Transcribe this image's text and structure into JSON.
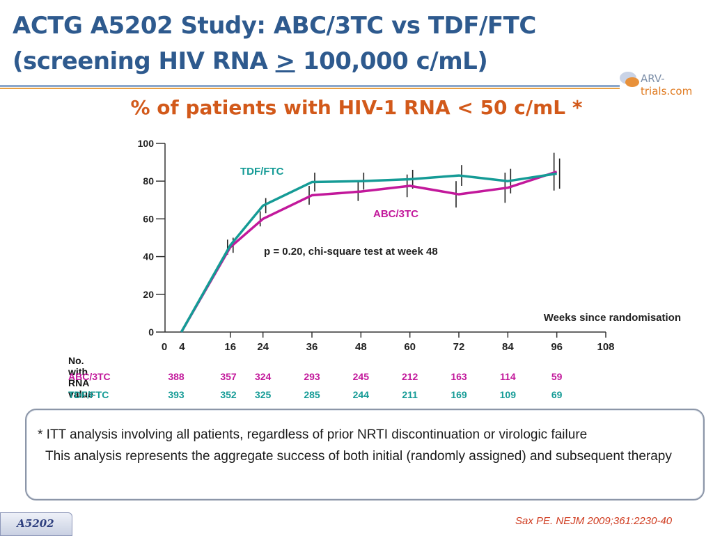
{
  "slide": {
    "title_line1": "ACTG A5202 Study: ABC/3TC vs TDF/FTC",
    "title_line2_pre": "(screening HIV RNA ",
    "title_line2_symbol": ">",
    "title_line2_post": " 100,000 c/mL)",
    "logo_text_a": "ARV-",
    "logo_text_b": "trials",
    "logo_text_c": ".com",
    "subtitle": "% of patients with HIV-1 RNA < 50 c/mL *",
    "footnote_line1": "* ITT analysis involving all patients, regardless of prior NRTI discontinuation or virologic failure",
    "footnote_line2": "This analysis represents the aggregate success of both initial (randomly assigned) and subsequent therapy",
    "study_tab": "A5202",
    "citation": "Sax PE. NEJM 2009;361:2230-40",
    "colors": {
      "title": "#2e5a8e",
      "subtitle": "#d2591a",
      "abc": "#c2189b",
      "tdf": "#159b96",
      "citation": "#cf3a1e"
    }
  },
  "chart_data": {
    "type": "line",
    "xlabel": "Weeks since randomisation",
    "ylabel": "",
    "xlim": [
      0,
      108
    ],
    "ylim": [
      0,
      100
    ],
    "x_ticks": [
      0,
      4,
      16,
      24,
      36,
      48,
      60,
      72,
      84,
      96,
      108
    ],
    "y_ticks": [
      0,
      20,
      40,
      60,
      80,
      100
    ],
    "series": [
      {
        "name": "TDF/FTC",
        "color": "#159b96",
        "x": [
          4,
          16,
          24,
          36,
          48,
          60,
          72,
          84,
          96
        ],
        "y": [
          0,
          46,
          67,
          79.5,
          80,
          81,
          83,
          80,
          84
        ],
        "err": [
          0,
          4,
          4,
          5,
          4.5,
          5,
          5.5,
          6.5,
          8
        ]
      },
      {
        "name": "ABC/3TC",
        "color": "#c2189b",
        "x": [
          4,
          16,
          24,
          36,
          48,
          60,
          72,
          84,
          96
        ],
        "y": [
          0,
          45,
          60,
          72.5,
          74.5,
          77.5,
          73,
          76.5,
          85
        ],
        "err": [
          0,
          4,
          4,
          5,
          5,
          6,
          7,
          8,
          10
        ]
      }
    ],
    "annotations": [
      "p = 0.20, chi-square test at week 48"
    ],
    "table": {
      "header": "No. with RNA value",
      "weeks": [
        4,
        16,
        24,
        36,
        48,
        60,
        72,
        84,
        96
      ],
      "rows": [
        {
          "label": "ABC/3TC",
          "color": "#c2189b",
          "values": [
            "388",
            "357",
            "324",
            "293",
            "245",
            "212",
            "163",
            "114",
            "59"
          ]
        },
        {
          "label": "TDF/FTC",
          "color": "#159b96",
          "values": [
            "393",
            "352",
            "325",
            "285",
            "244",
            "211",
            "169",
            "109",
            "69"
          ]
        }
      ]
    }
  }
}
